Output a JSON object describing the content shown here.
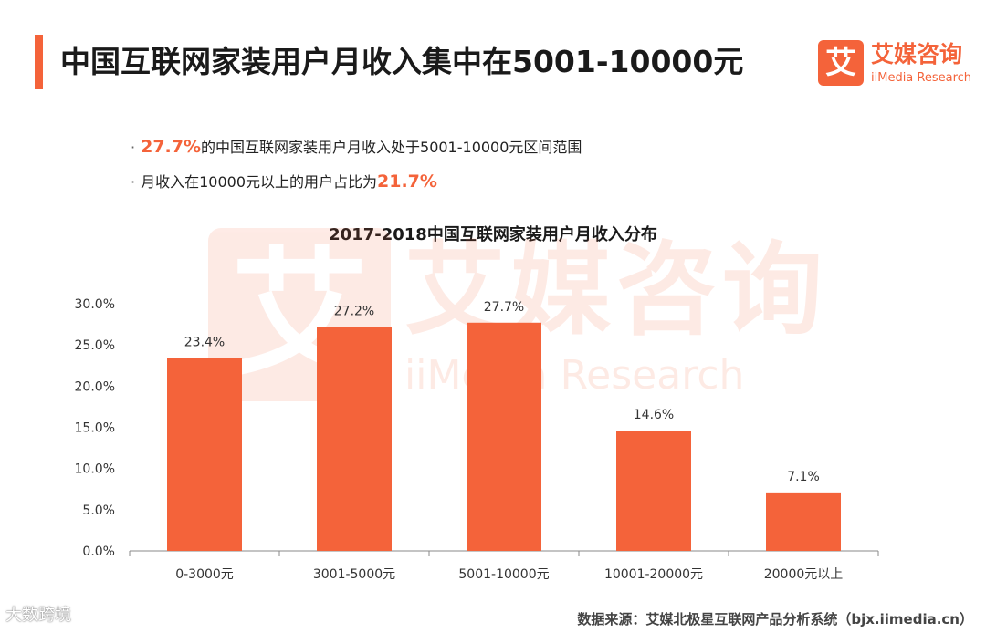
{
  "page": {
    "title": "中国互联网家装用户月收入集中在5001-10000元",
    "bullets": [
      {
        "highlight": "27.7%",
        "text": "的中国互联网家装用户月收入处于5001-10000元区间范围"
      },
      {
        "text": "月收入在10000元以上的用户占比为",
        "highlight": "21.7%"
      }
    ],
    "source": "数据来源：艾媒北极星互联网产品分析系统（bjx.iimedia.cn）",
    "corner_mark": "大数跨境"
  },
  "logo": {
    "box_char": "艾",
    "cn": "艾媒咨询",
    "en": "iiMedia Research"
  },
  "colors": {
    "accent": "#f4633a",
    "bar": "#f4633a",
    "axis": "#888888"
  },
  "chart_data": {
    "type": "bar",
    "title": "2017-2018中国互联网家装用户月收入分布",
    "categories": [
      "0-3000元",
      "3001-5000元",
      "5001-10000元",
      "10001-20000元",
      "20000元以上"
    ],
    "values": [
      23.4,
      27.2,
      27.7,
      14.6,
      7.1
    ],
    "value_labels": [
      "23.4%",
      "27.2%",
      "27.7%",
      "14.6%",
      "7.1%"
    ],
    "yticks": [
      "0.0%",
      "5.0%",
      "10.0%",
      "15.0%",
      "20.0%",
      "25.0%",
      "30.0%"
    ],
    "ylim": [
      0,
      30
    ],
    "xlabel": "",
    "ylabel": "",
    "grid": false,
    "legend": "none"
  }
}
